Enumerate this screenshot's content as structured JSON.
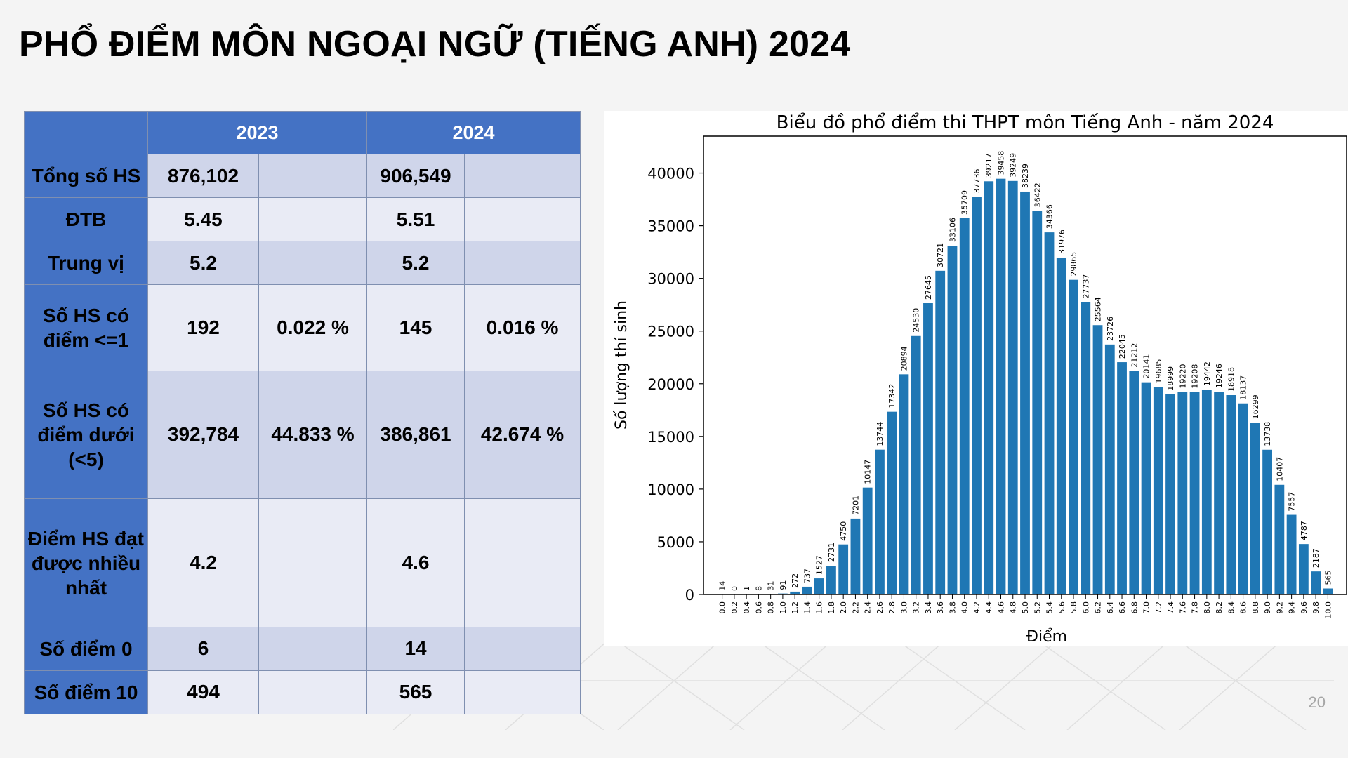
{
  "title": "PHỔ ĐIỂM MÔN NGOẠI NGỮ (TIẾNG ANH) 2024",
  "page_number": "20",
  "colors": {
    "header_blue": "#4472c4",
    "row_dark": "#cfd5ea",
    "row_light": "#e9ebf5",
    "highlight": "#ff0000",
    "bar": "#1f77b4"
  },
  "table": {
    "year_2023": "2023",
    "year_2024": "2024",
    "rows": [
      {
        "label": "Tổng số HS",
        "v2023": "876,102",
        "p2023": "",
        "v2024": "906,549",
        "p2024": ""
      },
      {
        "label": "ĐTB",
        "v2023": "5.45",
        "p2023": "",
        "v2024": "5.51",
        "p2024": ""
      },
      {
        "label": "Trung vị",
        "v2023": "5.2",
        "p2023": "",
        "v2024": "5.2",
        "p2024": ""
      },
      {
        "label": "Số HS có điểm <=1",
        "v2023": "192",
        "p2023": "0.022 %",
        "v2024": "145",
        "p2024": "0.016 %"
      },
      {
        "label": "Số HS có điểm dưới (<5)",
        "v2023": "392,784",
        "p2023": "44.833 %",
        "v2024": "386,861",
        "p2024": "42.674 %"
      },
      {
        "label": "Điểm HS đạt được nhiều nhất",
        "v2023": "4.2",
        "p2023": "",
        "v2024": "4.6",
        "p2024": ""
      },
      {
        "label": "Số điểm 0",
        "v2023": "6",
        "p2023": "",
        "v2024": "14",
        "p2024": ""
      },
      {
        "label": "Số điểm 10",
        "v2023": "494",
        "p2023": "",
        "v2024": "565",
        "p2024": ""
      }
    ]
  },
  "chart_data": {
    "type": "bar",
    "title": "Biểu đồ phổ điểm thi THPT môn Tiếng Anh - năm 2024",
    "xlabel": "Điểm",
    "ylabel": "Số lượng thí sinh",
    "ylim": [
      0,
      43500
    ],
    "yticks": [
      0,
      5000,
      10000,
      15000,
      20000,
      25000,
      30000,
      35000,
      40000
    ],
    "categories": [
      "0.0",
      "0.2",
      "0.4",
      "0.6",
      "0.8",
      "1.0",
      "1.2",
      "1.4",
      "1.6",
      "1.8",
      "2.0",
      "2.2",
      "2.4",
      "2.6",
      "2.8",
      "3.0",
      "3.2",
      "3.4",
      "3.6",
      "3.8",
      "4.0",
      "4.2",
      "4.4",
      "4.6",
      "4.8",
      "5.0",
      "5.2",
      "5.4",
      "5.6",
      "5.8",
      "6.0",
      "6.2",
      "6.4",
      "6.6",
      "6.8",
      "7.0",
      "7.2",
      "7.4",
      "7.6",
      "7.8",
      "8.0",
      "8.2",
      "8.4",
      "8.6",
      "8.8",
      "9.0",
      "9.2",
      "9.4",
      "9.6",
      "9.8",
      "10.0"
    ],
    "values": [
      14,
      0,
      1,
      8,
      31,
      91,
      272,
      737,
      1527,
      2731,
      4750,
      7201,
      10147,
      13744,
      17342,
      20894,
      24530,
      27645,
      30721,
      33106,
      35709,
      37736,
      39217,
      39458,
      39249,
      38239,
      36422,
      34366,
      31976,
      29865,
      27737,
      25564,
      23726,
      22045,
      21212,
      20141,
      19685,
      18999,
      19220,
      19208,
      19442,
      19246,
      18918,
      18137,
      16299,
      13738,
      10407,
      7557,
      4787,
      2187,
      565
    ],
    "grid": false,
    "legend": "none"
  }
}
